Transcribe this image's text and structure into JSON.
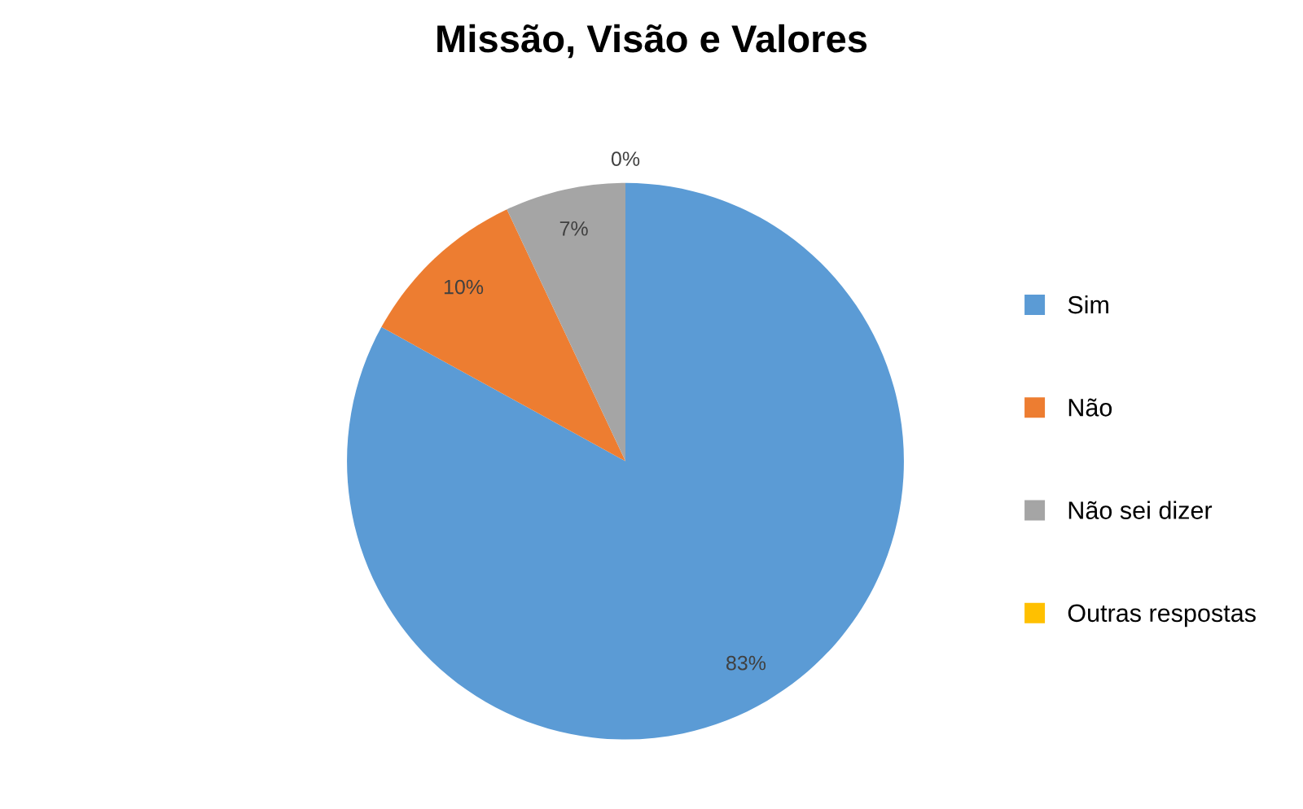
{
  "chart_data": {
    "type": "pie",
    "title": "Missão, Visão e Valores",
    "categories": [
      "Sim",
      "Não",
      "Não sei dizer",
      "Outras respostas"
    ],
    "values": [
      83,
      10,
      7,
      0
    ],
    "colors": [
      "#5b9bd5",
      "#ed7d31",
      "#a5a5a5",
      "#ffc000"
    ],
    "value_labels": [
      "83%",
      "10%",
      "7%",
      "0%"
    ],
    "legend": "right"
  }
}
